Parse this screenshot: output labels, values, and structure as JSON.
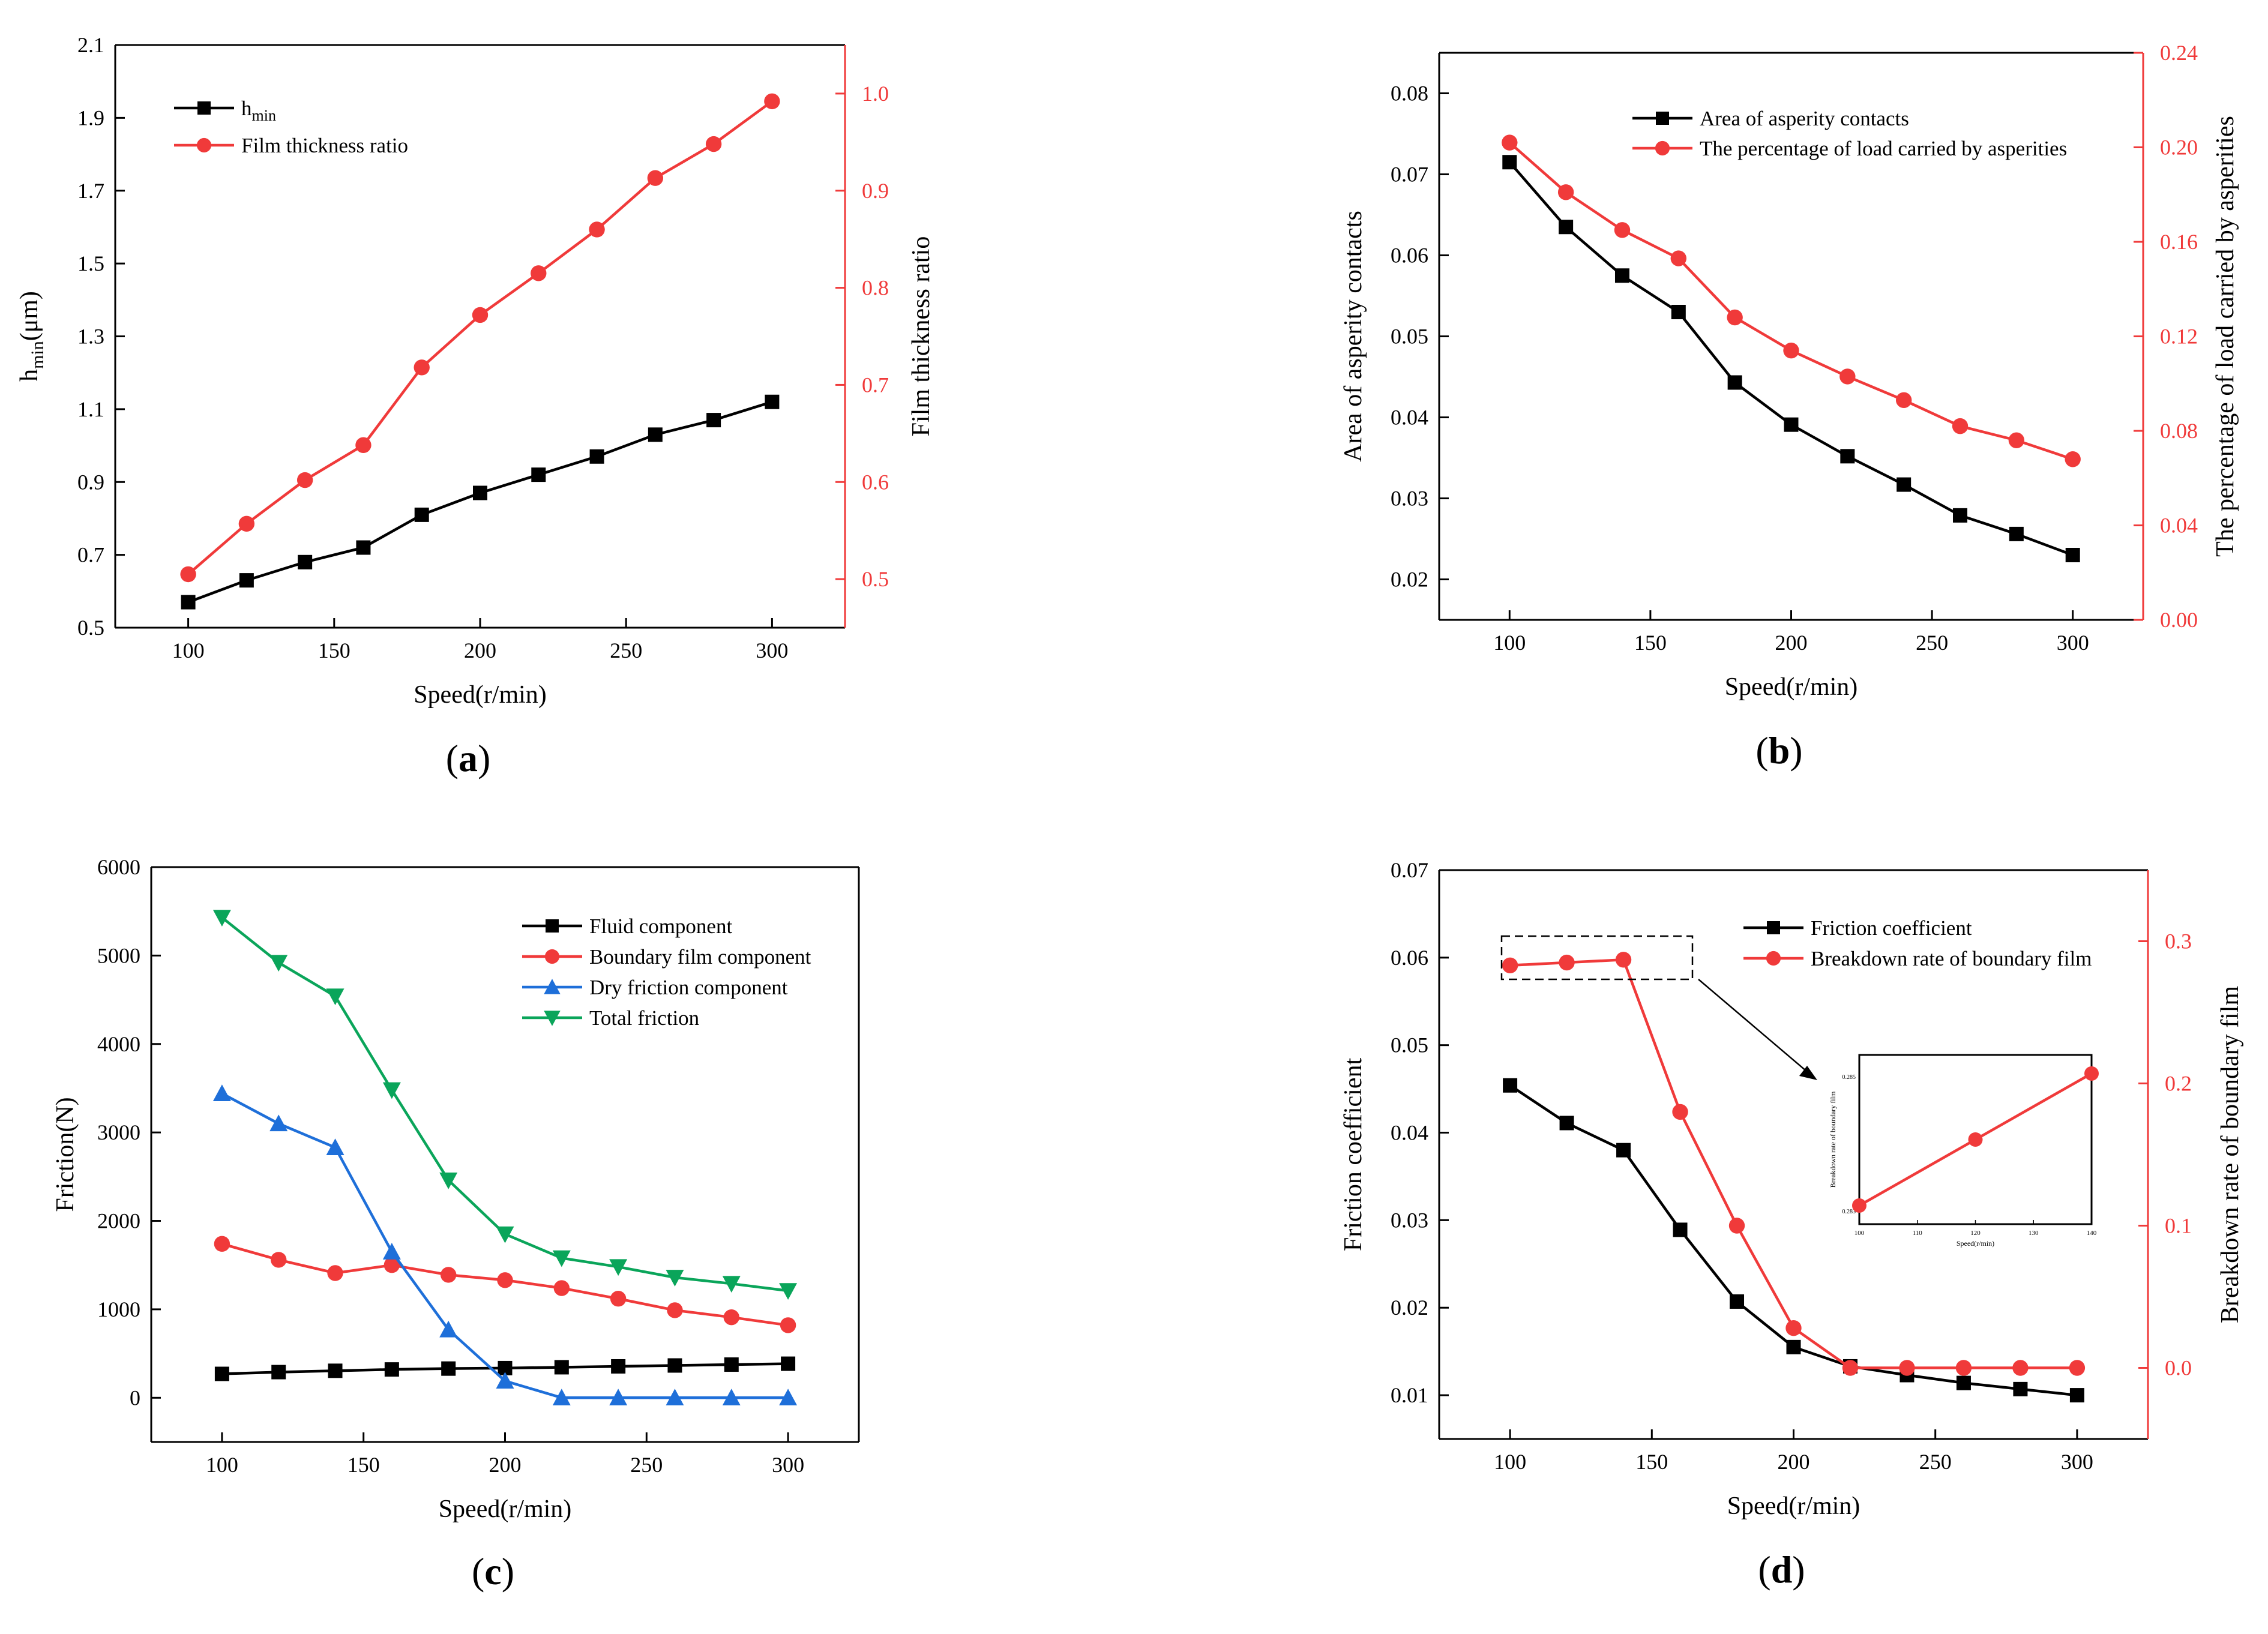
{
  "chart_data": [
    {
      "panel": "(a)",
      "panel_letter": "a",
      "type": "line",
      "xlabel": "Speed(r/min)",
      "ylabel": "h_min(μm)",
      "y2label": "Film thickness ratio",
      "xlim": [
        75,
        325
      ],
      "x_ticks": [
        100,
        150,
        200,
        250,
        300
      ],
      "ylim": [
        0.5,
        2.1
      ],
      "y_ticks": [
        "0.5",
        "0.7",
        "0.9",
        "1.1",
        "1.3",
        "1.5",
        "1.7",
        "1.9",
        "2.1"
      ],
      "y2lim": [
        0.45,
        1.05
      ],
      "y2_ticks": [
        "0.5",
        "0.6",
        "0.7",
        "0.8",
        "0.9",
        "1.0"
      ],
      "legend_position": "top-left",
      "series": [
        {
          "name": "h_min",
          "label_main": "h",
          "label_sub": "min",
          "axis": "left",
          "marker": "square",
          "color": "#000000",
          "x": [
            100,
            120,
            140,
            160,
            180,
            200,
            220,
            240,
            260,
            280,
            300
          ],
          "values": [
            0.57,
            0.63,
            0.68,
            0.72,
            0.81,
            0.87,
            0.92,
            0.97,
            1.03,
            1.07,
            1.12
          ]
        },
        {
          "name": "Film thickness ratio",
          "axis": "right",
          "marker": "circle",
          "color": "#f03a3a",
          "x": [
            100,
            120,
            140,
            160,
            180,
            200,
            220,
            240,
            260,
            280,
            300
          ],
          "values": [
            0.505,
            0.557,
            0.602,
            0.638,
            0.718,
            0.772,
            0.815,
            0.86,
            0.913,
            0.948,
            0.992
          ]
        }
      ]
    },
    {
      "panel": "(b)",
      "panel_letter": "b",
      "type": "line",
      "xlabel": "Speed(r/min)",
      "ylabel": "Area of asperity contacts",
      "y2label": "The percentage of load carried by asperities",
      "xlim": [
        75,
        325
      ],
      "x_ticks": [
        100,
        150,
        200,
        250,
        300
      ],
      "ylim": [
        0.015,
        0.085
      ],
      "y_ticks": [
        "0.02",
        "0.03",
        "0.04",
        "0.05",
        "0.06",
        "0.07",
        "0.08"
      ],
      "y2lim": [
        0.0,
        0.24
      ],
      "y2_ticks": [
        "0.00",
        "0.04",
        "0.08",
        "0.12",
        "0.16",
        "0.20",
        "0.24"
      ],
      "legend_position": "top-right",
      "series": [
        {
          "name": "Area of asperity contacts",
          "axis": "left",
          "marker": "square",
          "color": "#000000",
          "x": [
            100,
            120,
            140,
            160,
            180,
            200,
            220,
            240,
            260,
            280,
            300
          ],
          "values": [
            0.0715,
            0.0635,
            0.0575,
            0.053,
            0.0443,
            0.0391,
            0.0352,
            0.0317,
            0.0279,
            0.0256,
            0.023
          ]
        },
        {
          "name": "The percentage of load carried by asperities",
          "axis": "right",
          "marker": "circle",
          "color": "#f03a3a",
          "x": [
            100,
            120,
            140,
            160,
            180,
            200,
            220,
            240,
            260,
            280,
            300
          ],
          "values": [
            0.202,
            0.181,
            0.165,
            0.153,
            0.128,
            0.114,
            0.103,
            0.093,
            0.082,
            0.076,
            0.068
          ]
        }
      ]
    },
    {
      "panel": "(c)",
      "panel_letter": "c",
      "type": "line",
      "xlabel": "Speed(r/min)",
      "ylabel": "Friction(N)",
      "xlim": [
        75,
        325
      ],
      "x_ticks": [
        100,
        150,
        200,
        250,
        300
      ],
      "ylim": [
        -500,
        6000
      ],
      "y_ticks": [
        "0",
        "1000",
        "2000",
        "3000",
        "4000",
        "5000",
        "6000"
      ],
      "legend_position": "top-right",
      "series": [
        {
          "name": "Fluid component",
          "axis": "left",
          "marker": "square",
          "color": "#000000",
          "x": [
            100,
            120,
            140,
            160,
            180,
            200,
            220,
            240,
            260,
            280,
            300
          ],
          "values": [
            270,
            290,
            305,
            320,
            330,
            335,
            345,
            355,
            365,
            375,
            385
          ]
        },
        {
          "name": "Boundary film component",
          "axis": "left",
          "marker": "circle",
          "color": "#f03a3a",
          "x": [
            100,
            120,
            140,
            160,
            180,
            200,
            220,
            240,
            260,
            280,
            300
          ],
          "values": [
            1740,
            1560,
            1410,
            1500,
            1390,
            1330,
            1240,
            1120,
            990,
            910,
            820
          ]
        },
        {
          "name": "Dry friction component",
          "axis": "left",
          "marker": "triangle-up",
          "color": "#1e6fd9",
          "x": [
            100,
            120,
            140,
            160,
            180,
            200,
            220,
            240,
            260,
            280,
            300
          ],
          "values": [
            3440,
            3100,
            2830,
            1650,
            770,
            190,
            0,
            0,
            0,
            0,
            0
          ]
        },
        {
          "name": "Total friction",
          "axis": "left",
          "marker": "triangle-down",
          "color": "#0aa55a",
          "x": [
            100,
            120,
            140,
            160,
            180,
            200,
            220,
            240,
            260,
            280,
            300
          ],
          "values": [
            5430,
            4920,
            4540,
            3480,
            2460,
            1850,
            1580,
            1480,
            1360,
            1290,
            1210
          ]
        }
      ]
    },
    {
      "panel": "(d)",
      "panel_letter": "d",
      "type": "line",
      "xlabel": "Speed(r/min)",
      "ylabel": "Friction coefficient",
      "y2label": "Breakdown rate of boundary film",
      "xlim": [
        75,
        325
      ],
      "x_ticks": [
        100,
        150,
        200,
        250,
        300
      ],
      "ylim": [
        0.005,
        0.07
      ],
      "y_ticks": [
        "0.01",
        "0.02",
        "0.03",
        "0.04",
        "0.05",
        "0.06",
        "0.07"
      ],
      "y2lim": [
        -0.05,
        0.35
      ],
      "y2_ticks": [
        "0.0",
        "0.1",
        "0.2",
        "0.3"
      ],
      "legend_position": "top-right",
      "series": [
        {
          "name": "Friction coefficient",
          "axis": "left",
          "marker": "square",
          "color": "#000000",
          "x": [
            100,
            120,
            140,
            160,
            180,
            200,
            220,
            240,
            260,
            280,
            300
          ],
          "values": [
            0.0454,
            0.0411,
            0.038,
            0.0289,
            0.0207,
            0.0155,
            0.0133,
            0.0123,
            0.0114,
            0.0107,
            0.01
          ]
        },
        {
          "name": "Breakdown rate of boundary film",
          "axis": "right",
          "marker": "circle",
          "color": "#f03a3a",
          "x": [
            100,
            120,
            140,
            160,
            180,
            200,
            220,
            240,
            260,
            280,
            300
          ],
          "values": [
            0.283,
            0.285,
            0.287,
            0.18,
            0.1,
            0.028,
            0.0,
            0.0,
            0.0,
            0.0,
            0.0
          ]
        }
      ],
      "inset": {
        "xlabel": "Speed(r/min)",
        "ylabel": "Breakdown rate of boundary film",
        "x_ticks": [
          "100",
          "110",
          "120",
          "130",
          "140"
        ],
        "y_ticks": [
          "0.283",
          "0.285"
        ],
        "x": [
          100,
          120,
          140
        ],
        "values": [
          0.283,
          0.285,
          0.287
        ]
      }
    }
  ]
}
